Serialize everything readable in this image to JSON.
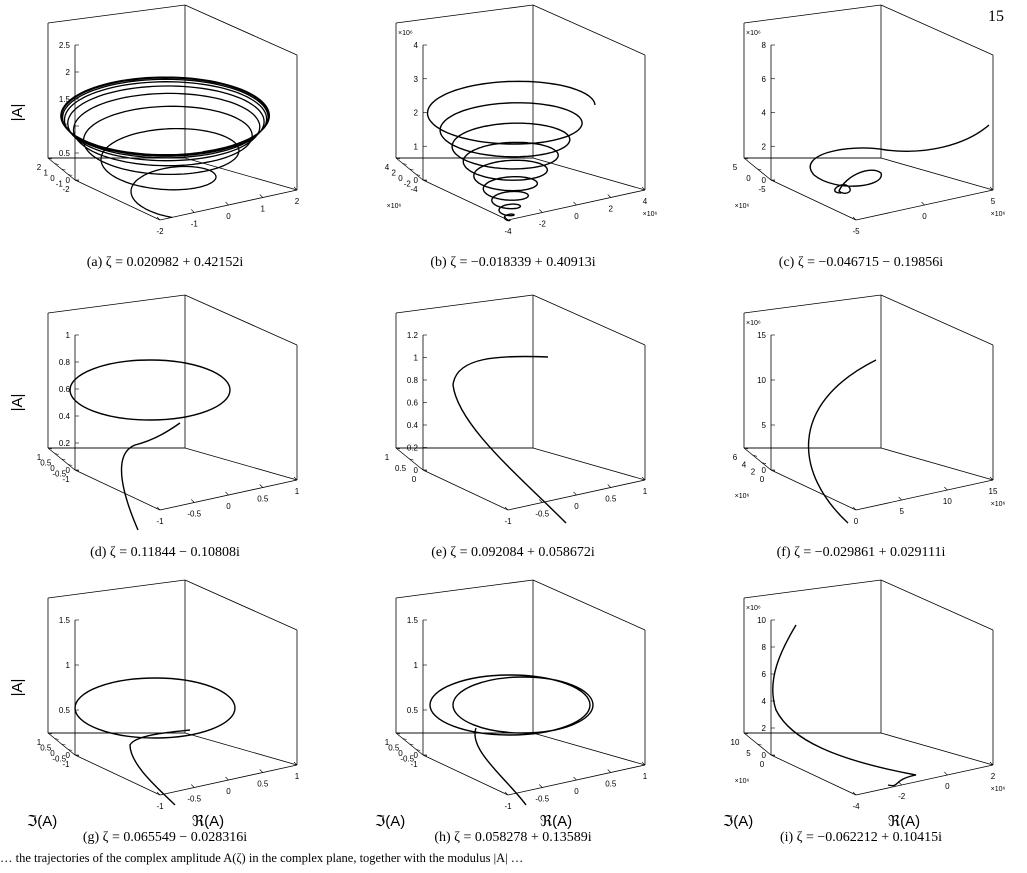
{
  "page_number": "15",
  "footer_text": "… the trajectories of the complex amplitude A(ζ) in the complex plane, together with the modulus |A| …",
  "figure": {
    "panels": [
      {
        "caption": "(a)  ζ = 0.020982 + 0.42152i",
        "z_ticks": [
          "2.5",
          "2",
          "1.5",
          "1",
          "0.5",
          "0"
        ],
        "im_ticks": [
          "2",
          "1",
          "0",
          "-1",
          "-2"
        ],
        "re_ticks": [
          "-2",
          "-1",
          "0",
          "1",
          "2"
        ],
        "z_label": "|A|",
        "im_label": "",
        "re_label": "",
        "z_exp": "",
        "im_exp": "",
        "re_exp": ""
      },
      {
        "caption": "(b)  ζ = −0.018339 + 0.40913i",
        "z_ticks": [
          "4",
          "3",
          "2",
          "1",
          "0"
        ],
        "im_ticks": [
          "4",
          "2",
          "0",
          "-2",
          "-4"
        ],
        "re_ticks": [
          "-4",
          "-2",
          "0",
          "2",
          "4"
        ],
        "z_label": "",
        "im_label": "",
        "re_label": "",
        "z_exp": "×10⁶",
        "im_exp": "×10⁶",
        "re_exp": "×10⁶"
      },
      {
        "caption": "(c)  ζ = −0.046715 − 0.19856i",
        "z_ticks": [
          "8",
          "6",
          "4",
          "2",
          "0"
        ],
        "im_ticks": [
          "5",
          "0",
          "-5"
        ],
        "re_ticks": [
          "-5",
          "0",
          "5"
        ],
        "z_label": "",
        "im_label": "",
        "re_label": "",
        "z_exp": "×10⁶",
        "im_exp": "×10⁶",
        "re_exp": "×10⁶"
      },
      {
        "caption": "(d)  ζ = 0.11844 − 0.10808i",
        "z_ticks": [
          "1",
          "0.8",
          "0.6",
          "0.4",
          "0.2",
          "0"
        ],
        "im_ticks": [
          "1",
          "0.5",
          "0",
          "-0.5",
          "-1"
        ],
        "re_ticks": [
          "-1",
          "-0.5",
          "0",
          "0.5",
          "1"
        ],
        "z_label": "|A|",
        "im_label": "",
        "re_label": "",
        "z_exp": "",
        "im_exp": "",
        "re_exp": ""
      },
      {
        "caption": "(e)  ζ = 0.092084 + 0.058672i",
        "z_ticks": [
          "1.2",
          "1",
          "0.8",
          "0.6",
          "0.4",
          "0.2",
          "0"
        ],
        "im_ticks": [
          "1",
          "0.5",
          "0"
        ],
        "re_ticks": [
          "-1",
          "-0.5",
          "0",
          "0.5",
          "1"
        ],
        "z_label": "",
        "im_label": "",
        "re_label": "",
        "z_exp": "",
        "im_exp": "",
        "re_exp": ""
      },
      {
        "caption": "(f)  ζ = −0.029861 + 0.029111i",
        "z_ticks": [
          "15",
          "10",
          "5",
          "0"
        ],
        "im_ticks": [
          "6",
          "4",
          "2",
          "0"
        ],
        "re_ticks": [
          "0",
          "5",
          "10",
          "15"
        ],
        "z_label": "",
        "im_label": "",
        "re_label": "",
        "z_exp": "×10⁶",
        "im_exp": "×10⁶",
        "re_exp": "×10⁶"
      },
      {
        "caption": "(g)  ζ = 0.065549 − 0.028316i",
        "z_ticks": [
          "1.5",
          "1",
          "0.5",
          "0"
        ],
        "im_ticks": [
          "1",
          "0.5",
          "0",
          "-0.5",
          "-1"
        ],
        "re_ticks": [
          "-1",
          "-0.5",
          "0",
          "0.5",
          "1"
        ],
        "z_label": "|A|",
        "im_label": "ℑ(A)",
        "re_label": "ℜ(A)",
        "z_exp": "",
        "im_exp": "",
        "re_exp": ""
      },
      {
        "caption": "(h)  ζ = 0.058278 + 0.13589i",
        "z_ticks": [
          "1.5",
          "1",
          "0.5",
          "0"
        ],
        "im_ticks": [
          "1",
          "0.5",
          "0",
          "-0.5",
          "-1"
        ],
        "re_ticks": [
          "-1",
          "-0.5",
          "0",
          "0.5",
          "1"
        ],
        "z_label": "",
        "im_label": "ℑ(A)",
        "re_label": "ℜ(A)",
        "z_exp": "",
        "im_exp": "",
        "re_exp": ""
      },
      {
        "caption": "(i)  ζ = −0.062212 + 0.10415i",
        "z_ticks": [
          "10",
          "8",
          "6",
          "4",
          "2",
          "0"
        ],
        "im_ticks": [
          "10",
          "5",
          "0"
        ],
        "re_ticks": [
          "-4",
          "-2",
          "0",
          "2"
        ],
        "z_label": "",
        "im_label": "ℑ(A)",
        "re_label": "ℜ(A)",
        "z_exp": "×10⁶",
        "im_exp": "×10⁶",
        "re_exp": "×10⁶"
      }
    ]
  }
}
